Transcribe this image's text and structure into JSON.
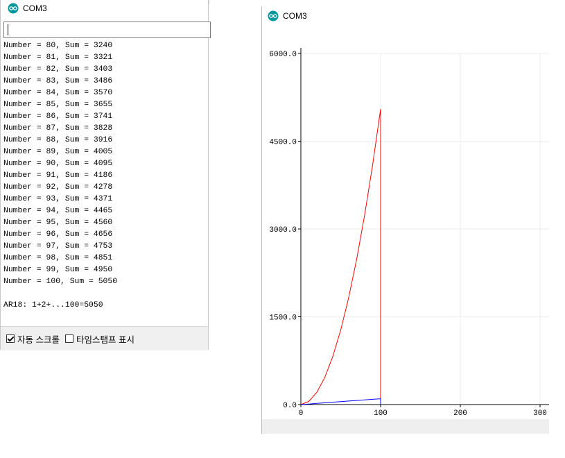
{
  "serial": {
    "title": "COM3",
    "input_value": "",
    "log_lines": [
      "Number = 80, Sum = 3240",
      "Number = 81, Sum = 3321",
      "Number = 82, Sum = 3403",
      "Number = 83, Sum = 3486",
      "Number = 84, Sum = 3570",
      "Number = 85, Sum = 3655",
      "Number = 86, Sum = 3741",
      "Number = 87, Sum = 3828",
      "Number = 88, Sum = 3916",
      "Number = 89, Sum = 4005",
      "Number = 90, Sum = 4095",
      "Number = 91, Sum = 4186",
      "Number = 92, Sum = 4278",
      "Number = 93, Sum = 4371",
      "Number = 94, Sum = 4465",
      "Number = 95, Sum = 4560",
      "Number = 96, Sum = 4656",
      "Number = 97, Sum = 4753",
      "Number = 98, Sum = 4851",
      "Number = 99, Sum = 4950",
      "Number = 100, Sum = 5050",
      "",
      "AR18: 1+2+...100=5050"
    ],
    "autoscroll_label": "자동 스크롤",
    "autoscroll_checked": true,
    "timestamp_label": "타임스탬프 표시",
    "timestamp_checked": false
  },
  "plotter": {
    "title": "COM3",
    "accent_color": "#00979c",
    "chart_data": {
      "type": "line",
      "ytick_labels": [
        "6000.0",
        "4500.0",
        "3000.0",
        "1500.0",
        "0.0"
      ],
      "xtick_labels": [
        "0",
        "100",
        "200",
        "300"
      ],
      "ylim": [
        0,
        6000
      ],
      "xlim": [
        0,
        310
      ],
      "grid": true,
      "series": [
        {
          "color": "#ff0000",
          "x": [
            0,
            10,
            20,
            30,
            40,
            50,
            60,
            70,
            80,
            90,
            100,
            100
          ],
          "y": [
            0,
            55,
            210,
            465,
            820,
            1275,
            1830,
            2485,
            3240,
            4095,
            5050,
            0
          ]
        },
        {
          "color": "#0000ff",
          "x": [
            0,
            10,
            20,
            30,
            40,
            50,
            60,
            70,
            80,
            90,
            100,
            100
          ],
          "y": [
            0,
            10,
            20,
            30,
            40,
            50,
            60,
            70,
            80,
            90,
            100,
            0
          ]
        }
      ]
    }
  }
}
